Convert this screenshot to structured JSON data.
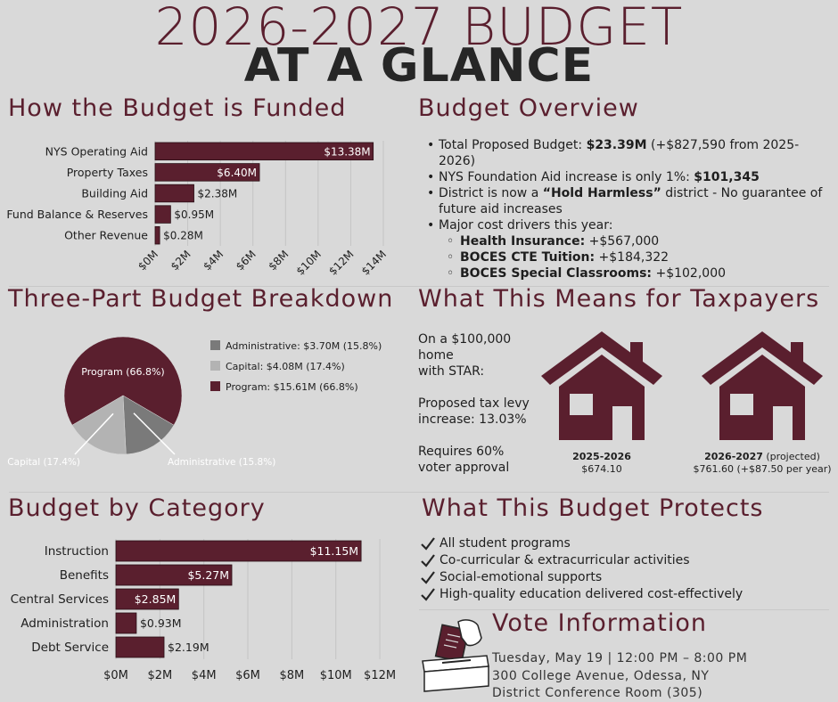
{
  "header": {
    "title_line1": "2026-2027 BUDGET",
    "title_line2": "AT A GLANCE"
  },
  "colors": {
    "maroon": "#5a1f2e",
    "dark": "#262626",
    "grey_admin": "#7a7a7a",
    "grey_capital": "#b3b3b3",
    "background": "#d9d9d9"
  },
  "funded": {
    "title": "How the Budget is Funded"
  },
  "overview": {
    "title": "Budget Overview",
    "items": [
      {
        "pre": "Total Proposed Budget: ",
        "bold": "$23.39M",
        "post": " (+$827,590 from 2025-2026)"
      },
      {
        "pre": "NYS Foundation Aid increase is only 1%: ",
        "bold": "$101,345",
        "post": ""
      },
      {
        "pre": "District is now a ",
        "bold": "“Hold Harmless”",
        "post": " district - No guarantee of future aid increases"
      },
      {
        "pre": "Major cost drivers this year:",
        "bold": "",
        "post": ""
      }
    ],
    "sub_items": [
      {
        "bold": "Health Insurance:",
        "post": " +$567,000"
      },
      {
        "bold": "BOCES CTE Tuition:",
        "post": " +$184,322"
      },
      {
        "bold": "BOCES Special Classrooms:",
        "post": " +$102,000"
      }
    ]
  },
  "breakdown": {
    "title": "Three-Part Budget Breakdown"
  },
  "taxpayers": {
    "title": "What This Means for Taxpayers",
    "intro": [
      "On a $100,000",
      "home",
      "with STAR:"
    ],
    "levy": [
      "Proposed tax levy",
      "increase: 13.03%"
    ],
    "approval": [
      "Requires 60%",
      "voter approval"
    ],
    "houses": [
      {
        "year": "2025-2026",
        "year_note": "",
        "amount": "$674.10"
      },
      {
        "year": "2026-2027",
        "year_note": " (projected)",
        "amount": "$761.60 (+$87.50 per year)"
      }
    ]
  },
  "category": {
    "title": "Budget by Category"
  },
  "protects": {
    "title": "What This Budget Protects",
    "items": [
      "All student programs",
      "Co-curricular & extracurricular activities",
      "Social-emotional supports",
      "High-quality education delivered cost-effectively"
    ]
  },
  "vote": {
    "title": "Vote Information",
    "lines": [
      "Tuesday, May 19 | 12:00 PM – 8:00 PM",
      "300 College Avenue, Odessa, NY",
      "District Conference Room (305)"
    ]
  },
  "chart_data": [
    {
      "type": "bar",
      "orientation": "horizontal",
      "categories": [
        "NYS Operating Aid",
        "Property Taxes",
        "Building Aid",
        "Fund Balance & Reserves",
        "Other Revenue"
      ],
      "values": [
        13.38,
        6.4,
        2.38,
        0.95,
        0.28
      ],
      "labels": [
        "$13.38M",
        "$6.40M",
        "$2.38M",
        "$0.95M",
        "$0.28M"
      ],
      "xticks": [
        "$0M",
        "$2M",
        "$4M",
        "$6M",
        "$8M",
        "$10M",
        "$12M",
        "$14M"
      ],
      "xlim": [
        0,
        14
      ],
      "grid": true
    },
    {
      "type": "pie",
      "slices": [
        {
          "name": "Program",
          "value": 66.8,
          "color": "#5a1f2e",
          "label": "Program (66.8%)"
        },
        {
          "name": "Administrative",
          "value": 15.8,
          "color": "#7a7a7a",
          "label": "Administrative (15.8%)"
        },
        {
          "name": "Capital",
          "value": 17.4,
          "color": "#b3b3b3",
          "label": "Capital (17.4%)"
        }
      ],
      "legend": [
        {
          "label": "Administrative: $3.70M (15.8%)",
          "color": "#7a7a7a"
        },
        {
          "label": "Capital: $4.08M (17.4%)",
          "color": "#b3b3b3"
        },
        {
          "label": "Program: $15.61M (66.8%)",
          "color": "#5a1f2e"
        }
      ],
      "legend_position": "right"
    },
    {
      "type": "bar",
      "orientation": "horizontal",
      "categories": [
        "Instruction",
        "Benefits",
        "Central Services",
        "Administration",
        "Debt Service"
      ],
      "values": [
        11.15,
        5.27,
        2.85,
        0.93,
        2.19
      ],
      "labels": [
        "$11.15M",
        "$5.27M",
        "$2.85M",
        "$0.93M",
        "$2.19M"
      ],
      "xticks": [
        "$0M",
        "$2M",
        "$4M",
        "$6M",
        "$8M",
        "$10M",
        "$12M"
      ],
      "xlim": [
        0,
        12.2
      ],
      "grid": true
    }
  ]
}
